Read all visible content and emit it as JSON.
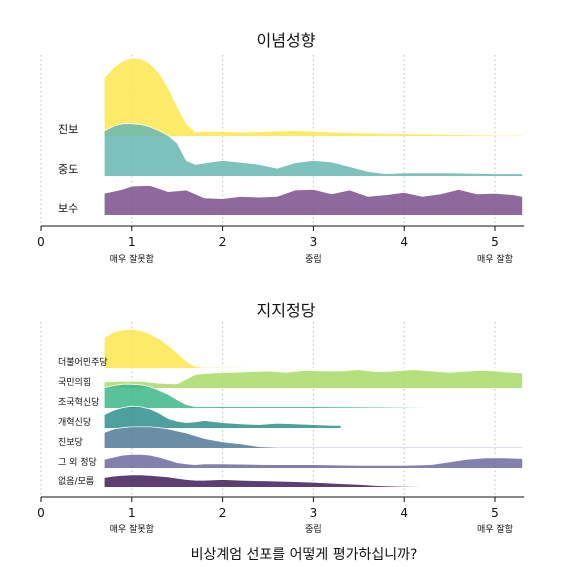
{
  "caption": "비상계엄 선포를 어떻게 평가하십니까?",
  "chart_data": [
    {
      "type": "ridgeline",
      "title": "이념성향",
      "xlim": [
        0,
        5.3
      ],
      "x_ticks": [
        0,
        1,
        2,
        3,
        4,
        5
      ],
      "x_sublabels": [
        {
          "x": 1,
          "label": "매우 잘못함"
        },
        {
          "x": 3,
          "label": "중립"
        },
        {
          "x": 5,
          "label": "매우 잘함"
        }
      ],
      "series": [
        {
          "name": "진보",
          "color": "#FDE84D",
          "x": [
            0.7,
            0.8,
            0.9,
            1.0,
            1.1,
            1.2,
            1.3,
            1.4,
            1.5,
            1.6,
            1.7,
            1.8,
            2.0,
            2.2,
            2.5,
            2.8,
            3.0,
            3.5,
            4.0,
            4.5,
            5.0,
            5.3
          ],
          "density": [
            0.75,
            0.88,
            0.96,
            1.0,
            0.99,
            0.93,
            0.81,
            0.62,
            0.38,
            0.16,
            0.05,
            0.06,
            0.06,
            0.05,
            0.06,
            0.07,
            0.06,
            0.04,
            0.03,
            0.02,
            0.01,
            0.01
          ]
        },
        {
          "name": "중도",
          "color": "#67B7B3",
          "x": [
            0.7,
            0.8,
            0.9,
            1.0,
            1.1,
            1.2,
            1.3,
            1.4,
            1.5,
            1.6,
            1.7,
            2.0,
            2.4,
            2.6,
            2.8,
            3.0,
            3.2,
            3.4,
            3.6,
            3.8,
            4.0,
            4.5,
            5.0,
            5.3
          ],
          "density": [
            0.58,
            0.64,
            0.67,
            0.67,
            0.66,
            0.63,
            0.58,
            0.52,
            0.42,
            0.2,
            0.15,
            0.2,
            0.15,
            0.1,
            0.17,
            0.2,
            0.18,
            0.12,
            0.06,
            0.03,
            0.04,
            0.04,
            0.03,
            0.03
          ]
        },
        {
          "name": "보수",
          "color": "#7A4F8A",
          "x": [
            0.7,
            0.9,
            1.0,
            1.2,
            1.4,
            1.6,
            1.8,
            2.0,
            2.2,
            2.4,
            2.6,
            2.8,
            3.0,
            3.2,
            3.4,
            3.6,
            3.8,
            4.0,
            4.2,
            4.4,
            4.6,
            4.8,
            5.0,
            5.2,
            5.3
          ],
          "density": [
            0.28,
            0.33,
            0.37,
            0.38,
            0.3,
            0.32,
            0.22,
            0.21,
            0.24,
            0.23,
            0.24,
            0.32,
            0.33,
            0.27,
            0.32,
            0.24,
            0.26,
            0.29,
            0.24,
            0.27,
            0.33,
            0.27,
            0.28,
            0.26,
            0.24
          ]
        }
      ]
    },
    {
      "type": "ridgeline",
      "title": "지지정당",
      "xlim": [
        0,
        5.3
      ],
      "x_ticks": [
        0,
        1,
        2,
        3,
        4,
        5
      ],
      "x_sublabels": [
        {
          "x": 1,
          "label": "매우 잘못함"
        },
        {
          "x": 3,
          "label": "중립"
        },
        {
          "x": 5,
          "label": "매우 잘함"
        }
      ],
      "series": [
        {
          "name": "더불어민주당",
          "color": "#FDE84D",
          "x": [
            0.7,
            0.8,
            0.9,
            1.0,
            1.1,
            1.2,
            1.3,
            1.4,
            1.5,
            1.6,
            1.7,
            1.8,
            2.0,
            3.0,
            4.0,
            5.3
          ],
          "density": [
            0.45,
            0.53,
            0.56,
            0.57,
            0.55,
            0.5,
            0.43,
            0.34,
            0.22,
            0.1,
            0.02,
            0.01,
            0.01,
            0.0,
            0.0,
            0.0
          ]
        },
        {
          "name": "국민의힘",
          "color": "#A9DB66",
          "x": [
            0.7,
            0.9,
            1.1,
            1.3,
            1.5,
            1.7,
            1.9,
            2.1,
            2.3,
            2.5,
            2.7,
            2.9,
            3.1,
            3.3,
            3.5,
            3.7,
            3.9,
            4.1,
            4.3,
            4.5,
            4.7,
            4.9,
            5.1,
            5.3
          ],
          "density": [
            0.09,
            0.1,
            0.1,
            0.07,
            0.06,
            0.2,
            0.22,
            0.23,
            0.24,
            0.25,
            0.23,
            0.26,
            0.25,
            0.25,
            0.27,
            0.24,
            0.25,
            0.27,
            0.25,
            0.23,
            0.25,
            0.26,
            0.24,
            0.22
          ]
        },
        {
          "name": "조국혁신당",
          "color": "#3DB689",
          "x": [
            0.7,
            0.8,
            0.9,
            1.0,
            1.1,
            1.2,
            1.3,
            1.4,
            1.5,
            1.6,
            1.7,
            2.0,
            3.0,
            4.0,
            4.6,
            5.3
          ],
          "density": [
            0.3,
            0.33,
            0.35,
            0.35,
            0.34,
            0.31,
            0.26,
            0.2,
            0.12,
            0.05,
            0.02,
            0.02,
            0.02,
            0.01,
            0.0,
            0.0
          ]
        },
        {
          "name": "개혁신당",
          "color": "#2E8F8C",
          "x": [
            0.7,
            0.8,
            0.9,
            1.0,
            1.1,
            1.2,
            1.3,
            1.4,
            1.5,
            1.6,
            1.7,
            1.8,
            2.0,
            2.2,
            2.4,
            2.6,
            2.8,
            3.0,
            3.2,
            3.3
          ],
          "density": [
            0.2,
            0.26,
            0.3,
            0.32,
            0.31,
            0.28,
            0.22,
            0.14,
            0.1,
            0.08,
            0.09,
            0.11,
            0.08,
            0.06,
            0.05,
            0.07,
            0.06,
            0.05,
            0.04,
            0.04
          ]
        },
        {
          "name": "진보당",
          "color": "#4F7A96",
          "x": [
            0.7,
            0.8,
            0.9,
            1.0,
            1.1,
            1.2,
            1.3,
            1.4,
            1.5,
            1.6,
            1.7,
            1.8,
            2.0,
            2.2,
            2.4,
            2.6,
            2.8,
            3.5,
            4.0,
            4.5,
            5.0,
            5.3
          ],
          "density": [
            0.23,
            0.28,
            0.3,
            0.31,
            0.31,
            0.31,
            0.3,
            0.28,
            0.25,
            0.22,
            0.18,
            0.14,
            0.09,
            0.06,
            0.02,
            0.01,
            0.01,
            0.01,
            0.01,
            0.01,
            0.01,
            0.01
          ]
        },
        {
          "name": "그 외 정당",
          "color": "#6E6AA0",
          "x": [
            0.7,
            0.8,
            0.9,
            1.0,
            1.1,
            1.2,
            1.3,
            1.4,
            1.5,
            1.6,
            1.7,
            1.8,
            2.0,
            2.5,
            3.0,
            3.5,
            4.0,
            4.3,
            4.5,
            4.7,
            4.9,
            5.1,
            5.3
          ],
          "density": [
            0.13,
            0.16,
            0.19,
            0.2,
            0.2,
            0.19,
            0.16,
            0.12,
            0.08,
            0.06,
            0.05,
            0.06,
            0.06,
            0.05,
            0.05,
            0.04,
            0.04,
            0.05,
            0.09,
            0.13,
            0.15,
            0.15,
            0.14
          ]
        },
        {
          "name": "없음/모름",
          "color": "#3F1C5C",
          "x": [
            0.7,
            0.8,
            0.9,
            1.0,
            1.1,
            1.2,
            1.3,
            1.4,
            1.5,
            1.6,
            1.7,
            1.8,
            2.0,
            2.2,
            2.5,
            2.8,
            3.0,
            3.3,
            3.5,
            3.7,
            4.0,
            4.5,
            5.0,
            5.3
          ],
          "density": [
            0.14,
            0.16,
            0.17,
            0.18,
            0.18,
            0.17,
            0.16,
            0.15,
            0.13,
            0.11,
            0.1,
            0.1,
            0.11,
            0.1,
            0.09,
            0.08,
            0.07,
            0.05,
            0.04,
            0.02,
            0.01,
            0.0,
            0.0,
            0.0
          ]
        }
      ]
    }
  ]
}
